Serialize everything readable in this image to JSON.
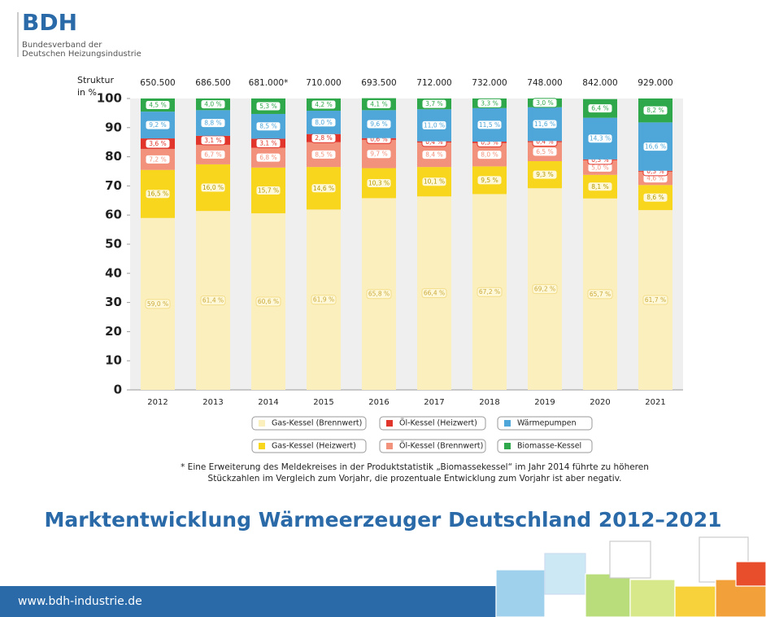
{
  "logo": {
    "mark": "BDH",
    "line1": "Bundesverband der",
    "line2": "Deutschen Heizungsindustrie"
  },
  "chart_data": {
    "type": "stacked_bar",
    "y_label": [
      "Struktur",
      "in %"
    ],
    "categories": [
      "2012",
      "2013",
      "2014",
      "2015",
      "2016",
      "2017",
      "2018",
      "2019",
      "2020",
      "2021"
    ],
    "top_labels": [
      {
        "value": 650500,
        "label": "650.500"
      },
      {
        "value": 686500,
        "label": "686.500"
      },
      {
        "value": 681000,
        "label": "681.000*"
      },
      {
        "value": 710000,
        "label": "710.000"
      },
      {
        "value": 693500,
        "label": "693.500"
      },
      {
        "value": 712000,
        "label": "712.000"
      },
      {
        "value": 732000,
        "label": "732.000"
      },
      {
        "value": 748000,
        "label": "748.000"
      },
      {
        "value": 842000,
        "label": "842.000"
      },
      {
        "value": 929000,
        "label": "929.000"
      }
    ],
    "ylim": [
      0,
      100
    ],
    "yticks": [
      0,
      10,
      20,
      30,
      40,
      50,
      60,
      70,
      80,
      90,
      100
    ],
    "series": [
      {
        "name": "Gas-Kessel (Brennwert)",
        "color": "#fbefbd",
        "values": [
          59.0,
          61.4,
          60.6,
          61.9,
          65.8,
          66.4,
          67.2,
          69.2,
          65.7,
          61.7
        ],
        "value_labels": [
          "59,0 %",
          "61,4 %",
          "60,6 %",
          "61,9 %",
          "65,8 %",
          "66,4 %",
          "67,2 %",
          "69,2 %",
          "65,7 %",
          "61,7 %"
        ]
      },
      {
        "name": "Gas-Kessel (Heizwert)",
        "color": "#f8d61e",
        "values": [
          16.5,
          16.0,
          15.7,
          14.6,
          10.3,
          10.1,
          9.5,
          9.3,
          8.1,
          8.6
        ],
        "value_labels": [
          "16,5 %",
          "16,0 %",
          "15,7 %",
          "14,6 %",
          "10,3 %",
          "10,1 %",
          "9,5 %",
          "9,3 %",
          "8,1 %",
          "8,6 %"
        ]
      },
      {
        "name": "Öl-Kessel (Brennwert)",
        "color": "#f3927c",
        "values": [
          7.2,
          6.7,
          6.8,
          8.5,
          9.7,
          8.4,
          8.0,
          6.5,
          5.0,
          4.6
        ],
        "value_labels": [
          "7,2 %",
          "6,7 %",
          "6,8 %",
          "8,5 %",
          "9,7 %",
          "8,4 %",
          "8,0 %",
          "6,5 %",
          "5,0 %",
          "4,6 %"
        ]
      },
      {
        "name": "Öl-Kessel (Heizwert)",
        "color": "#e1352b",
        "values": [
          3.6,
          3.1,
          3.1,
          2.8,
          0.6,
          0.4,
          0.5,
          0.4,
          0.3,
          0.3
        ],
        "value_labels": [
          "3,6 %",
          "3,1 %",
          "3,1 %",
          "2,8 %",
          "0,6 %",
          "0,4 %",
          "0,5 %",
          "0,4 %",
          "0,3 %",
          "0,3 %"
        ]
      },
      {
        "name": "Wärmepumpen",
        "color": "#4ea6d9",
        "values": [
          9.2,
          8.8,
          8.5,
          8.0,
          9.6,
          11.0,
          11.5,
          11.6,
          14.3,
          16.6
        ],
        "value_labels": [
          "9,2 %",
          "8,8 %",
          "8,5 %",
          "8,0 %",
          "9,6 %",
          "11,0 %",
          "11,5 %",
          "11,6 %",
          "14,3 %",
          "16,6 %"
        ]
      },
      {
        "name": "Biomasse-Kessel",
        "color": "#2fa84b",
        "values": [
          4.5,
          4.0,
          5.3,
          4.2,
          4.1,
          3.7,
          3.3,
          3.0,
          6.4,
          8.2
        ],
        "value_labels": [
          "4,5 %",
          "4,0 %",
          "5,3 %",
          "4,2 %",
          "4,1 %",
          "3,7 %",
          "3,3 %",
          "3,0 %",
          "6,4 %",
          "8,2 %"
        ]
      }
    ],
    "legend_order": [
      0,
      3,
      4,
      1,
      2,
      5
    ]
  },
  "footnote": [
    "* Eine Erweiterung des Meldekreises in der Produktstatistik „Biomassekessel“ im Jahr 2014 führte zu höheren",
    "Stückzahlen im Vergleich zum Vorjahr, die prozentuale Entwicklung zum Vorjahr ist aber negativ."
  ],
  "title": "Marktentwicklung Wärmeerzeuger Deutschland 2012–2021",
  "footer": "www.bdh-industrie.de"
}
